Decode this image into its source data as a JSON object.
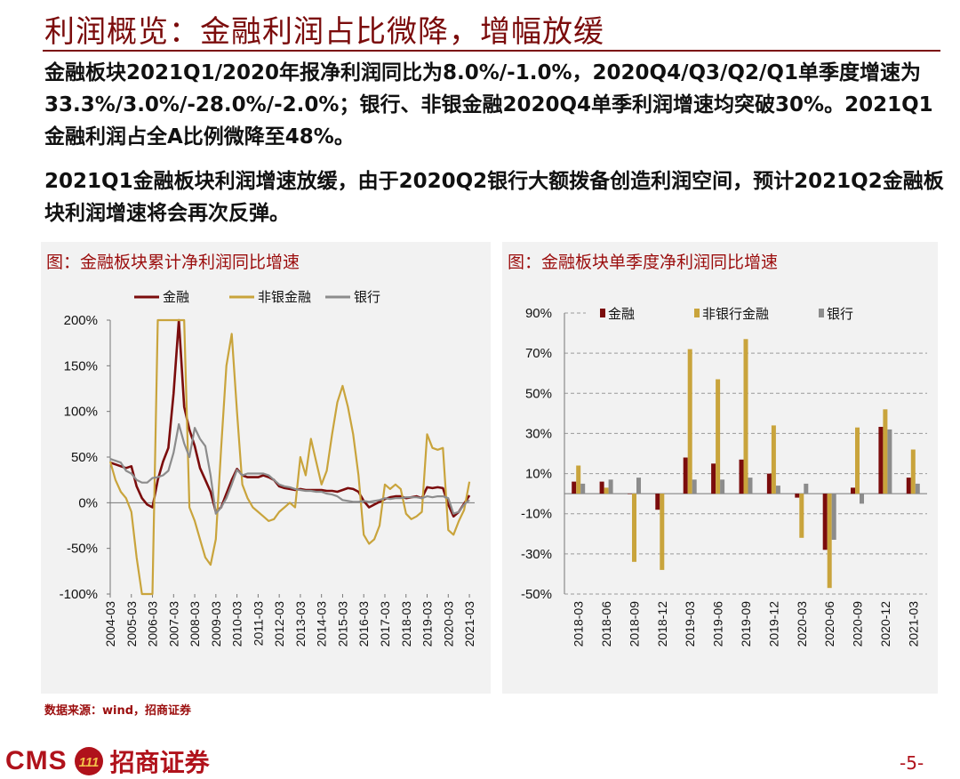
{
  "header": {
    "title": "利润概览：金融利润占比微降，增幅放缓"
  },
  "paragraphs": [
    "金融板块2021Q1/2020年报净利润同比为8.0%/-1.0%，2020Q4/Q3/Q2/Q1单季度增速为33.3%/3.0%/-28.0%/-2.0%；银行、非银金融2020Q4单季利润增速均突破30%。2021Q1金融利润占全A比例微降至48%。",
    "2021Q1金融板块利润增速放缓，由于2020Q2银行大额拨备创造利润空间，预计2021Q2金融板块利润增速将会再次反弹。"
  ],
  "colors": {
    "finance": "#7b0c0c",
    "nonbank": "#c9a43c",
    "bank": "#8c8c8c",
    "accent": "#9b0d0d"
  },
  "chart_data": [
    {
      "type": "line",
      "title": "图：金融板块累计净利润同比增速",
      "x_tick_labels": [
        "2004-03",
        "2005-03",
        "2006-03",
        "2007-03",
        "2008-03",
        "2009-03",
        "2010-03",
        "2011-03",
        "2012-03",
        "2013-03",
        "2014-03",
        "2015-03",
        "2016-03",
        "2017-03",
        "2018-03",
        "2019-03",
        "2020-03",
        "2021-03"
      ],
      "y_tick_labels": [
        "200%",
        "150%",
        "100%",
        "50%",
        "0%",
        "-50%",
        "-100%"
      ],
      "ylim": [
        -100,
        200
      ],
      "x_range": [
        2004.0,
        2021.25
      ],
      "series": [
        {
          "name": "金融",
          "points": [
            [
              2004.0,
              44
            ],
            [
              2004.25,
              42
            ],
            [
              2004.5,
              40
            ],
            [
              2004.75,
              38
            ],
            [
              2005.0,
              40
            ],
            [
              2005.25,
              18
            ],
            [
              2005.5,
              5
            ],
            [
              2005.75,
              -2
            ],
            [
              2006.0,
              -5
            ],
            [
              2006.25,
              25
            ],
            [
              2006.5,
              45
            ],
            [
              2006.75,
              60
            ],
            [
              2007.0,
              120
            ],
            [
              2007.25,
              200
            ],
            [
              2007.5,
              105
            ],
            [
              2007.75,
              80
            ],
            [
              2008.0,
              62
            ],
            [
              2008.25,
              38
            ],
            [
              2008.5,
              25
            ],
            [
              2008.75,
              12
            ],
            [
              2009.0,
              -10
            ],
            [
              2009.25,
              -5
            ],
            [
              2009.5,
              10
            ],
            [
              2009.75,
              25
            ],
            [
              2010.0,
              37
            ],
            [
              2010.25,
              30
            ],
            [
              2010.5,
              28
            ],
            [
              2010.75,
              28
            ],
            [
              2011.0,
              28
            ],
            [
              2011.25,
              30
            ],
            [
              2011.5,
              28
            ],
            [
              2011.75,
              25
            ],
            [
              2012.0,
              18
            ],
            [
              2012.25,
              16
            ],
            [
              2012.5,
              15
            ],
            [
              2012.75,
              14
            ],
            [
              2013.0,
              15
            ],
            [
              2013.25,
              14
            ],
            [
              2013.5,
              14
            ],
            [
              2013.75,
              14
            ],
            [
              2014.0,
              14
            ],
            [
              2014.25,
              13
            ],
            [
              2014.5,
              13
            ],
            [
              2014.75,
              12
            ],
            [
              2015.0,
              14
            ],
            [
              2015.25,
              16
            ],
            [
              2015.5,
              15
            ],
            [
              2015.75,
              12
            ],
            [
              2016.0,
              2
            ],
            [
              2016.25,
              -5
            ],
            [
              2016.5,
              -2
            ],
            [
              2016.75,
              1
            ],
            [
              2017.0,
              4
            ],
            [
              2017.25,
              6
            ],
            [
              2017.5,
              7
            ],
            [
              2017.75,
              7
            ],
            [
              2018.0,
              5
            ],
            [
              2018.25,
              6
            ],
            [
              2018.5,
              7
            ],
            [
              2018.75,
              5
            ],
            [
              2019.0,
              17
            ],
            [
              2019.25,
              16
            ],
            [
              2019.5,
              17
            ],
            [
              2019.75,
              16
            ],
            [
              2020.0,
              -2
            ],
            [
              2020.25,
              -15
            ],
            [
              2020.5,
              -10
            ],
            [
              2020.75,
              -1
            ],
            [
              2021.0,
              8
            ]
          ]
        },
        {
          "name": "非银金融",
          "points": [
            [
              2004.0,
              45
            ],
            [
              2004.25,
              25
            ],
            [
              2004.5,
              12
            ],
            [
              2004.75,
              5
            ],
            [
              2005.0,
              -10
            ],
            [
              2005.25,
              -60
            ],
            [
              2005.5,
              -100
            ],
            [
              2005.75,
              -100
            ],
            [
              2006.0,
              -100
            ],
            [
              2006.25,
              200
            ],
            [
              2006.5,
              200
            ],
            [
              2006.75,
              200
            ],
            [
              2007.0,
              200
            ],
            [
              2007.25,
              200
            ],
            [
              2007.5,
              200
            ],
            [
              2007.75,
              -5
            ],
            [
              2008.0,
              -20
            ],
            [
              2008.25,
              -40
            ],
            [
              2008.5,
              -60
            ],
            [
              2008.75,
              -68
            ],
            [
              2009.0,
              -40
            ],
            [
              2009.25,
              60
            ],
            [
              2009.5,
              150
            ],
            [
              2009.75,
              185
            ],
            [
              2010.0,
              100
            ],
            [
              2010.25,
              20
            ],
            [
              2010.5,
              5
            ],
            [
              2010.75,
              -5
            ],
            [
              2011.0,
              -10
            ],
            [
              2011.25,
              -15
            ],
            [
              2011.5,
              -20
            ],
            [
              2011.75,
              -18
            ],
            [
              2012.0,
              -10
            ],
            [
              2012.25,
              -5
            ],
            [
              2012.5,
              0
            ],
            [
              2012.75,
              -5
            ],
            [
              2013.0,
              50
            ],
            [
              2013.25,
              30
            ],
            [
              2013.5,
              70
            ],
            [
              2013.75,
              45
            ],
            [
              2014.0,
              20
            ],
            [
              2014.25,
              35
            ],
            [
              2014.5,
              75
            ],
            [
              2014.75,
              110
            ],
            [
              2015.0,
              128
            ],
            [
              2015.25,
              105
            ],
            [
              2015.5,
              75
            ],
            [
              2015.75,
              30
            ],
            [
              2016.0,
              -35
            ],
            [
              2016.25,
              -45
            ],
            [
              2016.5,
              -40
            ],
            [
              2016.75,
              -25
            ],
            [
              2017.0,
              20
            ],
            [
              2017.25,
              15
            ],
            [
              2017.5,
              20
            ],
            [
              2017.75,
              15
            ],
            [
              2018.0,
              -12
            ],
            [
              2018.25,
              -18
            ],
            [
              2018.5,
              -15
            ],
            [
              2018.75,
              -10
            ],
            [
              2019.0,
              75
            ],
            [
              2019.25,
              60
            ],
            [
              2019.5,
              58
            ],
            [
              2019.75,
              60
            ],
            [
              2020.0,
              -30
            ],
            [
              2020.25,
              -35
            ],
            [
              2020.5,
              -20
            ],
            [
              2020.75,
              -8
            ],
            [
              2021.0,
              23
            ]
          ]
        },
        {
          "name": "银行",
          "points": [
            [
              2004.0,
              48
            ],
            [
              2004.25,
              46
            ],
            [
              2004.5,
              44
            ],
            [
              2004.75,
              35
            ],
            [
              2005.0,
              32
            ],
            [
              2005.25,
              25
            ],
            [
              2005.5,
              22
            ],
            [
              2005.75,
              22
            ],
            [
              2006.0,
              27
            ],
            [
              2006.25,
              28
            ],
            [
              2006.5,
              30
            ],
            [
              2006.75,
              35
            ],
            [
              2007.0,
              55
            ],
            [
              2007.25,
              86
            ],
            [
              2007.5,
              65
            ],
            [
              2007.75,
              50
            ],
            [
              2008.0,
              82
            ],
            [
              2008.25,
              70
            ],
            [
              2008.5,
              62
            ],
            [
              2008.75,
              30
            ],
            [
              2009.0,
              -12
            ],
            [
              2009.25,
              -5
            ],
            [
              2009.5,
              5
            ],
            [
              2009.75,
              20
            ],
            [
              2010.0,
              36
            ],
            [
              2010.25,
              30
            ],
            [
              2010.5,
              32
            ],
            [
              2010.75,
              32
            ],
            [
              2011.0,
              32
            ],
            [
              2011.25,
              32
            ],
            [
              2011.5,
              30
            ],
            [
              2011.75,
              25
            ],
            [
              2012.0,
              20
            ],
            [
              2012.25,
              18
            ],
            [
              2012.5,
              17
            ],
            [
              2012.75,
              15
            ],
            [
              2013.0,
              14
            ],
            [
              2013.25,
              13
            ],
            [
              2013.5,
              13
            ],
            [
              2013.75,
              12
            ],
            [
              2014.0,
              12
            ],
            [
              2014.25,
              10
            ],
            [
              2014.5,
              9
            ],
            [
              2014.75,
              7
            ],
            [
              2015.0,
              3
            ],
            [
              2015.25,
              2
            ],
            [
              2015.5,
              1
            ],
            [
              2015.75,
              1
            ],
            [
              2016.0,
              2
            ],
            [
              2016.25,
              1
            ],
            [
              2016.5,
              2
            ],
            [
              2016.75,
              3
            ],
            [
              2017.0,
              5
            ],
            [
              2017.25,
              4
            ],
            [
              2017.5,
              5
            ],
            [
              2017.75,
              5
            ],
            [
              2018.0,
              6
            ],
            [
              2018.25,
              6
            ],
            [
              2018.5,
              6
            ],
            [
              2018.75,
              5
            ],
            [
              2019.0,
              7
            ],
            [
              2019.25,
              6
            ],
            [
              2019.5,
              7
            ],
            [
              2019.75,
              7
            ],
            [
              2020.0,
              5
            ],
            [
              2020.25,
              -12
            ],
            [
              2020.5,
              -10
            ],
            [
              2020.75,
              -2
            ],
            [
              2021.0,
              3
            ]
          ]
        }
      ]
    },
    {
      "type": "bar",
      "title": "图：金融板块单季度净利润同比增速",
      "categories": [
        "2018-03",
        "2018-06",
        "2018-09",
        "2018-12",
        "2019-03",
        "2019-06",
        "2019-09",
        "2019-12",
        "2020-03",
        "2020-06",
        "2020-09",
        "2020-12",
        "2021-03"
      ],
      "y_tick_labels": [
        "90%",
        "70%",
        "50%",
        "30%",
        "10%",
        "-10%",
        "-30%",
        "-50%"
      ],
      "ylim": [
        -50,
        90
      ],
      "series": [
        {
          "name": "金融",
          "values": [
            6,
            6,
            0,
            -8,
            18,
            15,
            17,
            10,
            -2,
            -28,
            3,
            33.3,
            8
          ]
        },
        {
          "name": "非银行金融",
          "values": [
            14,
            3,
            -34,
            -38,
            72,
            57,
            77,
            34,
            -22,
            -47,
            33,
            42,
            22
          ]
        },
        {
          "name": "银行",
          "values": [
            5,
            7,
            8,
            0,
            7,
            7,
            8,
            4,
            5,
            -23,
            -5,
            32,
            5
          ]
        }
      ]
    }
  ],
  "footer": {
    "source": "数据来源：wind，招商证券",
    "logo_text": "CMS",
    "logo_glyph": "111",
    "logo_cn": "招商证券",
    "page": "-5-"
  }
}
